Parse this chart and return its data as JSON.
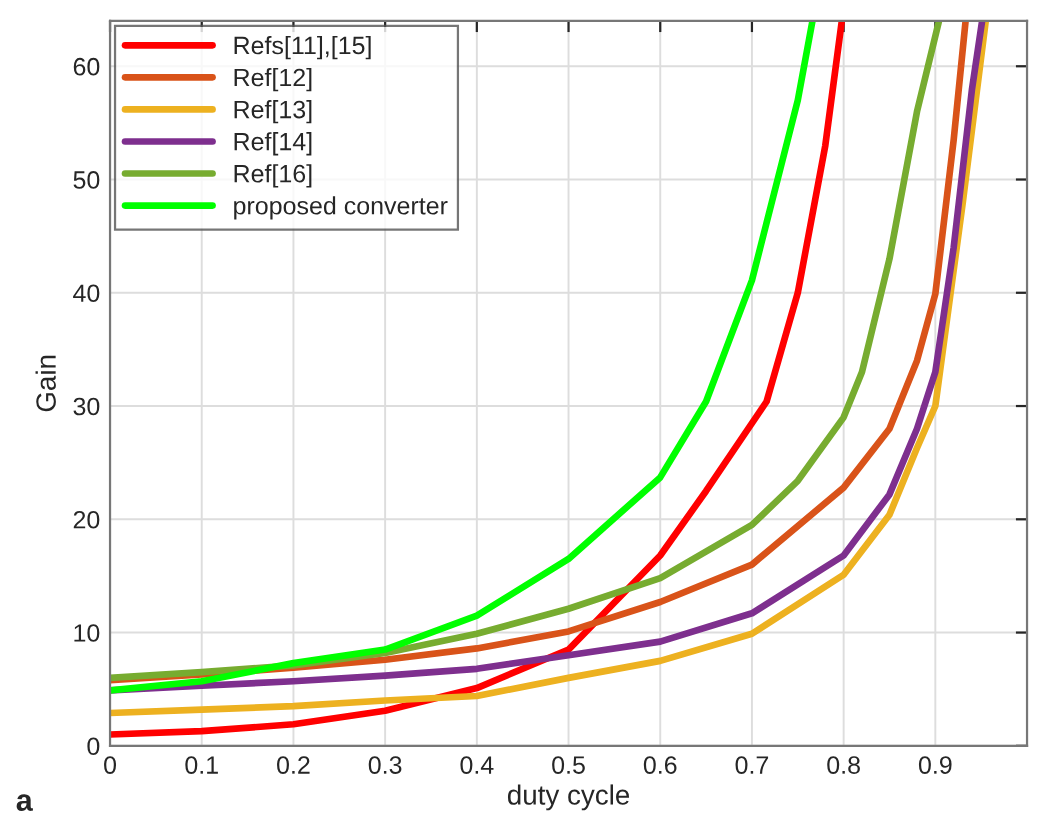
{
  "chart_data": {
    "type": "line",
    "xlabel": "duty cycle",
    "ylabel": "Gain",
    "annotations": [
      "a"
    ],
    "xlim": [
      0,
      1
    ],
    "ylim": [
      0,
      64
    ],
    "xticks": [
      0,
      0.1,
      0.2,
      0.3,
      0.4,
      0.5,
      0.6,
      0.7,
      0.8,
      0.9
    ],
    "yticks": [
      0,
      10,
      20,
      30,
      40,
      50,
      60
    ],
    "grid": true,
    "legend": "top left",
    "marker": "none",
    "line_style": "solid",
    "series": [
      {
        "name": "Refs[11],[15]",
        "color": "#ff0000",
        "x": [
          0,
          0.1,
          0.2,
          0.3,
          0.4,
          0.5,
          0.6,
          0.65,
          0.716,
          0.75,
          0.78,
          0.798
        ],
        "values": [
          1,
          1.3,
          1.9,
          3.1,
          5.1,
          8.5,
          16.8,
          22.5,
          30.4,
          40,
          53,
          64
        ]
      },
      {
        "name": "Ref[12]",
        "color": "#d95319",
        "x": [
          0,
          0.1,
          0.2,
          0.3,
          0.4,
          0.5,
          0.6,
          0.7,
          0.8,
          0.85,
          0.88,
          0.9,
          0.92,
          0.933
        ],
        "values": [
          5.8,
          6.3,
          6.9,
          7.6,
          8.6,
          10.1,
          12.7,
          16,
          22.8,
          28,
          34,
          39.9,
          53.5,
          64
        ]
      },
      {
        "name": "Ref[13]",
        "color": "#edb120",
        "x": [
          0,
          0.1,
          0.2,
          0.3,
          0.4,
          0.5,
          0.6,
          0.7,
          0.8,
          0.85,
          0.88,
          0.9,
          0.93,
          0.955
        ],
        "values": [
          2.9,
          3.2,
          3.5,
          4,
          4.4,
          6,
          7.5,
          9.9,
          15.1,
          20.4,
          26.3,
          30,
          48,
          64
        ]
      },
      {
        "name": "Ref[14]",
        "color": "#7e2f8e",
        "x": [
          0,
          0.1,
          0.2,
          0.3,
          0.4,
          0.5,
          0.6,
          0.7,
          0.8,
          0.85,
          0.88,
          0.9,
          0.92,
          0.94,
          0.951
        ],
        "values": [
          4.9,
          5.3,
          5.7,
          6.2,
          6.8,
          8,
          9.2,
          11.7,
          16.8,
          22.2,
          28,
          33,
          44,
          58,
          64
        ]
      },
      {
        "name": "Ref[16]",
        "color": "#77ac30",
        "x": [
          0,
          0.1,
          0.2,
          0.3,
          0.4,
          0.5,
          0.6,
          0.7,
          0.75,
          0.8,
          0.82,
          0.85,
          0.88,
          0.904
        ],
        "values": [
          6,
          6.5,
          7.1,
          8.2,
          9.9,
          12.1,
          14.8,
          19.5,
          23.4,
          29,
          33,
          43,
          56,
          64
        ]
      },
      {
        "name": "proposed converter",
        "color": "#00ff00",
        "x": [
          0,
          0.1,
          0.2,
          0.3,
          0.4,
          0.5,
          0.6,
          0.65,
          0.7,
          0.75,
          0.766
        ],
        "values": [
          4.9,
          5.7,
          7.3,
          8.5,
          11.5,
          16.5,
          23.7,
          30.4,
          41.1,
          57,
          64
        ]
      }
    ]
  }
}
